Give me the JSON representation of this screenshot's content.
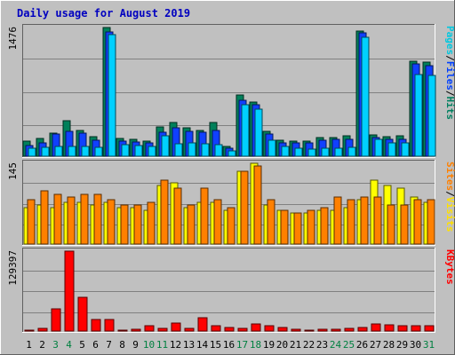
{
  "chart_data": {
    "type": "bar",
    "title": "Daily usage for August 2019",
    "categories": [
      "1",
      "2",
      "3",
      "4",
      "5",
      "6",
      "7",
      "8",
      "9",
      "10",
      "11",
      "12",
      "13",
      "14",
      "15",
      "16",
      "17",
      "18",
      "19",
      "20",
      "21",
      "22",
      "23",
      "24",
      "25",
      "26",
      "27",
      "28",
      "29",
      "30",
      "31"
    ],
    "weekend_days": [
      3,
      4,
      10,
      11,
      17,
      18,
      24,
      25,
      31
    ],
    "panels": [
      {
        "key": "top",
        "ymax_label": "1476",
        "ylim": [
          0,
          1476
        ],
        "legend": [
          {
            "text": "Pages",
            "color": "#00c8e0"
          },
          {
            "text": "/",
            "color": "#000000"
          },
          {
            "text": "Files",
            "color": "#0040ff"
          },
          {
            "text": "/",
            "color": "#000000"
          },
          {
            "text": "Hits",
            "color": "#008060"
          }
        ],
        "series": [
          {
            "name": "Hits",
            "color": "#00805a",
            "values": [
              170,
              200,
              260,
              410,
              300,
              220,
              1476,
              200,
              190,
              170,
              340,
              390,
              330,
              300,
              390,
              110,
              700,
              620,
              290,
              180,
              170,
              170,
              210,
              210,
              230,
              1440,
              240,
              220,
              230,
              1090,
              1080
            ]
          },
          {
            "name": "Files",
            "color": "#1040ff",
            "values": [
              120,
              150,
              250,
              290,
              260,
              180,
              1430,
              170,
              160,
              150,
              270,
              330,
              280,
              270,
              300,
              90,
              640,
              590,
              250,
              150,
              150,
              150,
              180,
              190,
              190,
              1410,
              210,
              190,
              190,
              1060,
              1040
            ]
          },
          {
            "name": "Pages",
            "color": "#00d0ff",
            "values": [
              90,
              100,
              110,
              110,
              110,
              100,
              1390,
              130,
              120,
              110,
              230,
              140,
              150,
              140,
              130,
              60,
              590,
              540,
              180,
              110,
              90,
              80,
              90,
              90,
              100,
              1360,
              190,
              150,
              150,
              940,
              930
            ]
          }
        ]
      },
      {
        "key": "mid",
        "ymax_label": "145",
        "ylim": [
          0,
          145
        ],
        "legend": [
          {
            "text": "Sites",
            "color": "#ff8000"
          },
          {
            "text": "/",
            "color": "#000000"
          },
          {
            "text": "Visits",
            "color": "#ffe000"
          }
        ],
        "series": [
          {
            "name": "Visits",
            "color": "#ffff00",
            "values": [
              65,
              70,
              65,
              75,
              75,
              70,
              75,
              65,
              65,
              60,
              105,
              110,
              65,
              75,
              75,
              60,
              130,
              145,
              70,
              60,
              55,
              55,
              60,
              60,
              65,
              80,
              115,
              105,
              100,
              85,
              75
            ]
          },
          {
            "name": "Sites",
            "color": "#ff8000",
            "values": [
              80,
              95,
              90,
              85,
              90,
              90,
              80,
              70,
              70,
              75,
              115,
              100,
              70,
              100,
              80,
              65,
              130,
              140,
              80,
              60,
              55,
              60,
              65,
              85,
              80,
              85,
              85,
              70,
              70,
              80,
              80
            ]
          }
        ]
      },
      {
        "key": "bot",
        "ymax_label": "129397",
        "ylim": [
          0,
          129397
        ],
        "legend": [
          {
            "text": "KBytes",
            "color": "#ff0000"
          }
        ],
        "series": [
          {
            "name": "KBytes",
            "color": "#ff0000",
            "values": [
              2000,
              4000,
              36000,
              129397,
              54000,
              18000,
              18000,
              2000,
              3000,
              8000,
              4000,
              13000,
              4000,
              22000,
              8000,
              6000,
              4000,
              12000,
              8000,
              6000,
              3000,
              2000,
              3000,
              3000,
              4000,
              6000,
              12000,
              10000,
              8000,
              9000,
              8000
            ]
          }
        ]
      }
    ]
  }
}
